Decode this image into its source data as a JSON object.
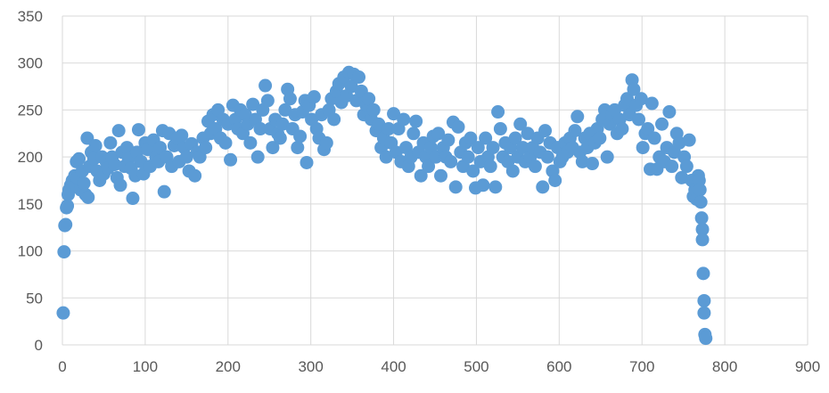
{
  "chart_data": {
    "type": "scatter",
    "title": "",
    "xlabel": "",
    "ylabel": "",
    "xlim": [
      0,
      900
    ],
    "ylim": [
      0,
      350
    ],
    "x_ticks": [
      0,
      100,
      200,
      300,
      400,
      500,
      600,
      700,
      800,
      900
    ],
    "y_ticks": [
      0,
      50,
      100,
      150,
      200,
      250,
      300,
      350
    ],
    "x_tick_labels": [
      "0",
      "100",
      "200",
      "300",
      "400",
      "500",
      "600",
      "700",
      "800",
      "900"
    ],
    "y_tick_labels": [
      "0",
      "50",
      "100",
      "150",
      "200",
      "250",
      "300",
      "350"
    ],
    "grid": true,
    "legend": "none",
    "colors": {
      "marker": "#5B9BD5",
      "grid": "#D9D9D9",
      "tick_text": "#595959"
    },
    "series": [
      {
        "values": [
          [
            1,
            34
          ],
          [
            2,
            99
          ],
          [
            3,
            127
          ],
          [
            4,
            128
          ],
          [
            5,
            146
          ],
          [
            6,
            148
          ],
          [
            7,
            160
          ],
          [
            8,
            165
          ],
          [
            10,
            170
          ],
          [
            12,
            175
          ],
          [
            14,
            172
          ],
          [
            15,
            180
          ],
          [
            17,
            195
          ],
          [
            18,
            178
          ],
          [
            20,
            198
          ],
          [
            22,
            165
          ],
          [
            24,
            185
          ],
          [
            26,
            172
          ],
          [
            28,
            160
          ],
          [
            30,
            220
          ],
          [
            31,
            157
          ],
          [
            33,
            190
          ],
          [
            35,
            205
          ],
          [
            38,
            198
          ],
          [
            40,
            212
          ],
          [
            42,
            185
          ],
          [
            45,
            175
          ],
          [
            48,
            200
          ],
          [
            50,
            182
          ],
          [
            53,
            195
          ],
          [
            55,
            188
          ],
          [
            58,
            215
          ],
          [
            60,
            200
          ],
          [
            63,
            192
          ],
          [
            66,
            178
          ],
          [
            68,
            228
          ],
          [
            70,
            170
          ],
          [
            72,
            205
          ],
          [
            75,
            190
          ],
          [
            78,
            210
          ],
          [
            80,
            198
          ],
          [
            83,
            188
          ],
          [
            85,
            156
          ],
          [
            88,
            180
          ],
          [
            90,
            205
          ],
          [
            92,
            229
          ],
          [
            95,
            195
          ],
          [
            98,
            182
          ],
          [
            100,
            215
          ],
          [
            103,
            208
          ],
          [
            106,
            190
          ],
          [
            110,
            218
          ],
          [
            113,
            200
          ],
          [
            116,
            195
          ],
          [
            118,
            210
          ],
          [
            121,
            228
          ],
          [
            123,
            163
          ],
          [
            126,
            200
          ],
          [
            129,
            225
          ],
          [
            132,
            190
          ],
          [
            135,
            212
          ],
          [
            138,
            220
          ],
          [
            141,
            195
          ],
          [
            144,
            223
          ],
          [
            147,
            210
          ],
          [
            150,
            200
          ],
          [
            153,
            185
          ],
          [
            156,
            214
          ],
          [
            160,
            180
          ],
          [
            163,
            205
          ],
          [
            166,
            200
          ],
          [
            170,
            220
          ],
          [
            173,
            210
          ],
          [
            176,
            238
          ],
          [
            179,
            225
          ],
          [
            182,
            245
          ],
          [
            185,
            230
          ],
          [
            188,
            250
          ],
          [
            191,
            220
          ],
          [
            194,
            240
          ],
          [
            197,
            215
          ],
          [
            200,
            235
          ],
          [
            203,
            197
          ],
          [
            206,
            255
          ],
          [
            209,
            240
          ],
          [
            212,
            230
          ],
          [
            215,
            250
          ],
          [
            218,
            225
          ],
          [
            221,
            245
          ],
          [
            224,
            235
          ],
          [
            227,
            215
          ],
          [
            230,
            256
          ],
          [
            233,
            240
          ],
          [
            236,
            200
          ],
          [
            239,
            230
          ],
          [
            242,
            250
          ],
          [
            245,
            276
          ],
          [
            248,
            260
          ],
          [
            251,
            230
          ],
          [
            254,
            210
          ],
          [
            257,
            240
          ],
          [
            260,
            225
          ],
          [
            263,
            220
          ],
          [
            266,
            235
          ],
          [
            269,
            250
          ],
          [
            272,
            272
          ],
          [
            275,
            262
          ],
          [
            278,
            230
          ],
          [
            281,
            245
          ],
          [
            284,
            210
          ],
          [
            287,
            222
          ],
          [
            290,
            248
          ],
          [
            293,
            260
          ],
          [
            295,
            194
          ],
          [
            298,
            255
          ],
          [
            301,
            240
          ],
          [
            304,
            264
          ],
          [
            307,
            230
          ],
          [
            310,
            220
          ],
          [
            313,
            245
          ],
          [
            316,
            208
          ],
          [
            319,
            215
          ],
          [
            322,
            250
          ],
          [
            325,
            262
          ],
          [
            328,
            240
          ],
          [
            331,
            270
          ],
          [
            334,
            278
          ],
          [
            337,
            258
          ],
          [
            340,
            285
          ],
          [
            343,
            265
          ],
          [
            346,
            290
          ],
          [
            349,
            275
          ],
          [
            352,
            288
          ],
          [
            355,
            260
          ],
          [
            358,
            285
          ],
          [
            361,
            270
          ],
          [
            364,
            245
          ],
          [
            367,
            255
          ],
          [
            370,
            262
          ],
          [
            373,
            240
          ],
          [
            376,
            250
          ],
          [
            379,
            228
          ],
          [
            382,
            235
          ],
          [
            385,
            210
          ],
          [
            388,
            220
          ],
          [
            391,
            200
          ],
          [
            394,
            230
          ],
          [
            397,
            215
          ],
          [
            400,
            246
          ],
          [
            403,
            205
          ],
          [
            406,
            230
          ],
          [
            409,
            195
          ],
          [
            412,
            240
          ],
          [
            415,
            210
          ],
          [
            418,
            190
          ],
          [
            421,
            200
          ],
          [
            424,
            225
          ],
          [
            427,
            238
          ],
          [
            430,
            205
          ],
          [
            433,
            180
          ],
          [
            436,
            215
          ],
          [
            439,
            200
          ],
          [
            442,
            190
          ],
          [
            445,
            210
          ],
          [
            448,
            222
          ],
          [
            451,
            200
          ],
          [
            454,
            225
          ],
          [
            457,
            180
          ],
          [
            460,
            210
          ],
          [
            463,
            200
          ],
          [
            466,
            218
          ],
          [
            469,
            195
          ],
          [
            472,
            237
          ],
          [
            475,
            168
          ],
          [
            478,
            232
          ],
          [
            481,
            205
          ],
          [
            484,
            190
          ],
          [
            487,
            215
          ],
          [
            490,
            200
          ],
          [
            493,
            220
          ],
          [
            496,
            185
          ],
          [
            499,
            167
          ],
          [
            502,
            210
          ],
          [
            505,
            195
          ],
          [
            508,
            170
          ],
          [
            511,
            220
          ],
          [
            514,
            200
          ],
          [
            517,
            190
          ],
          [
            520,
            210
          ],
          [
            523,
            168
          ],
          [
            526,
            248
          ],
          [
            529,
            230
          ],
          [
            532,
            200
          ],
          [
            535,
            215
          ],
          [
            538,
            195
          ],
          [
            541,
            210
          ],
          [
            544,
            185
          ],
          [
            547,
            220
          ],
          [
            550,
            200
          ],
          [
            553,
            235
          ],
          [
            556,
            210
          ],
          [
            559,
            195
          ],
          [
            562,
            225
          ],
          [
            565,
            200
          ],
          [
            568,
            210
          ],
          [
            571,
            190
          ],
          [
            574,
            220
          ],
          [
            577,
            205
          ],
          [
            580,
            168
          ],
          [
            583,
            228
          ],
          [
            586,
            200
          ],
          [
            589,
            215
          ],
          [
            592,
            185
          ],
          [
            595,
            175
          ],
          [
            598,
            210
          ],
          [
            601,
            195
          ],
          [
            604,
            200
          ],
          [
            607,
            215
          ],
          [
            610,
            205
          ],
          [
            613,
            220
          ],
          [
            616,
            210
          ],
          [
            619,
            228
          ],
          [
            622,
            243
          ],
          [
            625,
            205
          ],
          [
            628,
            195
          ],
          [
            631,
            220
          ],
          [
            634,
            210
          ],
          [
            637,
            225
          ],
          [
            640,
            193
          ],
          [
            643,
            215
          ],
          [
            646,
            230
          ],
          [
            649,
            220
          ],
          [
            652,
            240
          ],
          [
            655,
            250
          ],
          [
            658,
            200
          ],
          [
            661,
            235
          ],
          [
            664,
            245
          ],
          [
            667,
            250
          ],
          [
            670,
            225
          ],
          [
            673,
            240
          ],
          [
            676,
            230
          ],
          [
            679,
            255
          ],
          [
            682,
            262
          ],
          [
            685,
            245
          ],
          [
            688,
            282
          ],
          [
            690,
            272
          ],
          [
            693,
            255
          ],
          [
            696,
            240
          ],
          [
            699,
            262
          ],
          [
            701,
            210
          ],
          [
            704,
            225
          ],
          [
            707,
            230
          ],
          [
            710,
            187
          ],
          [
            712,
            257
          ],
          [
            715,
            220
          ],
          [
            718,
            187
          ],
          [
            721,
            200
          ],
          [
            724,
            235
          ],
          [
            727,
            195
          ],
          [
            730,
            210
          ],
          [
            733,
            248
          ],
          [
            736,
            190
          ],
          [
            739,
            205
          ],
          [
            742,
            225
          ],
          [
            745,
            215
          ],
          [
            748,
            178
          ],
          [
            751,
            200
          ],
          [
            754,
            190
          ],
          [
            757,
            218
          ],
          [
            760,
            175
          ],
          [
            762,
            158
          ],
          [
            764,
            165
          ],
          [
            766,
            155
          ],
          [
            768,
            180
          ],
          [
            769,
            175
          ],
          [
            770,
            165
          ],
          [
            771,
            152
          ],
          [
            772,
            135
          ],
          [
            773,
            123
          ],
          [
            773,
            112
          ],
          [
            774,
            76
          ],
          [
            775,
            47
          ],
          [
            775,
            34
          ],
          [
            776,
            11
          ],
          [
            777,
            7
          ]
        ]
      }
    ]
  }
}
